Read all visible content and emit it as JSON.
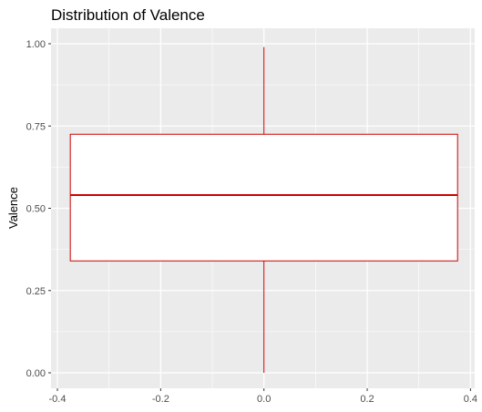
{
  "chart_data": {
    "type": "boxplot",
    "title": "Distribution of Valence",
    "xlabel": "",
    "ylabel": "Valence",
    "xlim": [
      -0.4,
      0.4
    ],
    "ylim": [
      0.0,
      1.0
    ],
    "x_ticks": [
      "-0.4",
      "-0.2",
      "0.0",
      "0.2",
      "0.4"
    ],
    "y_ticks": [
      "0.00",
      "0.25",
      "0.50",
      "0.75",
      "1.00"
    ],
    "grid": true,
    "box": {
      "x_min": -0.375,
      "x_max": 0.375,
      "center_x": 0.0,
      "whisker_low": 0.0,
      "q1": 0.34,
      "median": 0.54,
      "q3": 0.725,
      "whisker_high": 0.99
    },
    "colors": {
      "panel_background": "#ebebeb",
      "grid": "#ffffff",
      "box_outline": "#cc0000",
      "box_fill": "#ffffff"
    }
  }
}
